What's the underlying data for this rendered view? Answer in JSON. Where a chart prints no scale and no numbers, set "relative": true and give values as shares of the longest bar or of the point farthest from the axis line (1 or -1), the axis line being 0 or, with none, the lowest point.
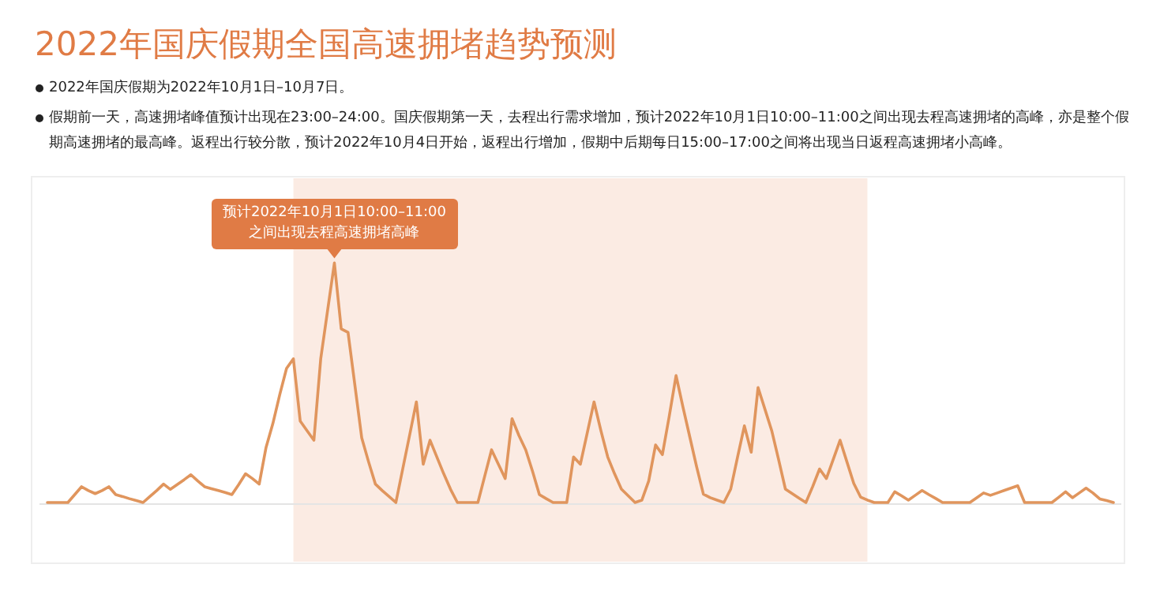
{
  "chart_data": {
    "type": "line",
    "title": "2022年国庆假期全国高速拥堵趋势预测",
    "annotations": [
      "2022年国庆假期为2022年10月1日–10月7日。",
      "假期前一天，高速拥堵峰值预计出现在23:00–24:00。国庆假期第一天，去程出行需求增加，预计2022年10月1日10:00–11:00之间出现去程高速拥堵的高峰，亦是整个假期高速拥堵的最高峰。返程出行较分散，预计2022年10月4日开始，返程出行增加，假期中后期每日15:00–17:00之间将出现当日返程高速拥堵小高峰。",
      {
        "text": "预计2022年10月1日10:00–11:00之间出现去程高速拥堵高峰",
        "y": 1
      }
    ],
    "relative": true,
    "color": "#e0955d",
    "categories": [
      null,
      null,
      null,
      null,
      null,
      null,
      null,
      null,
      null,
      null,
      null,
      null,
      null,
      null,
      null,
      null,
      null,
      null,
      null,
      null,
      null,
      null,
      null,
      null,
      null,
      null,
      null,
      null,
      null,
      null,
      null,
      null,
      null,
      null,
      null,
      null,
      null,
      null,
      null,
      null,
      null,
      null,
      null,
      null,
      null,
      null,
      null,
      null,
      null,
      null,
      null,
      null,
      null,
      null,
      null,
      null,
      null,
      null,
      null,
      null,
      null,
      null,
      null,
      null,
      null,
      null,
      null,
      null,
      null,
      null,
      null,
      null,
      null,
      null,
      null,
      null,
      null,
      null,
      null,
      null,
      null,
      null,
      null,
      null,
      null,
      null,
      null,
      null,
      null,
      null,
      null,
      null,
      null,
      null,
      null,
      null,
      null,
      null,
      null,
      null,
      null,
      null,
      null,
      null,
      null,
      null,
      null,
      null,
      null,
      null,
      null,
      null,
      null,
      null,
      null,
      null,
      null,
      null,
      null,
      null,
      null,
      null,
      null,
      null,
      null,
      null,
      null,
      null,
      null,
      null,
      null,
      null,
      null,
      null,
      null,
      null,
      null,
      null,
      null,
      null,
      null,
      null,
      null,
      null,
      null,
      null,
      null,
      null,
      null,
      null,
      null,
      null,
      null,
      null,
      null,
      null,
      null
    ],
    "values": [
      0,
      0,
      0,
      0,
      0.033,
      0.066,
      0.05,
      0.037,
      0.05,
      0.066,
      0.033,
      0.025,
      0.016,
      0.008,
      0,
      0.025,
      0.05,
      0.077,
      0.055,
      0.075,
      0.095,
      0.116,
      0.09,
      0.066,
      0.058,
      0.05,
      0.042,
      0.033,
      0.075,
      0.12,
      0.1,
      0.077,
      0.23,
      0.33,
      0.45,
      0.56,
      0.6,
      0.34,
      0.3,
      0.26,
      0.6,
      0.8,
      1,
      0.725,
      0.71,
      0.49,
      0.27,
      0.17,
      0.077,
      0.05,
      0.025,
      0,
      0.14,
      0.28,
      0.42,
      0.16,
      0.26,
      0.19,
      0.12,
      0.055,
      0,
      0,
      0,
      0,
      0.11,
      0.22,
      0.16,
      0.1,
      0.35,
      0.28,
      0.22,
      0.13,
      0.033,
      0.016,
      0,
      0,
      0,
      0.19,
      0.16,
      0.29,
      0.42,
      0.3,
      0.19,
      0.12,
      0.056,
      0.028,
      0,
      0.01,
      0.09,
      0.24,
      0.2,
      0.36,
      0.53,
      0.4,
      0.275,
      0.15,
      0.035,
      0.02,
      0.01,
      0,
      0.056,
      0.19,
      0.32,
      0.21,
      0.48,
      0.39,
      0.3,
      0.18,
      0.056,
      0.037,
      0.018,
      0,
      0.067,
      0.14,
      0.1,
      0.18,
      0.26,
      0.17,
      0.08,
      0.023,
      0.01,
      0,
      0,
      0,
      0.045,
      0.028,
      0.01,
      0.03,
      0.05,
      0.033,
      0.017,
      0,
      0,
      0,
      0,
      0,
      0.02,
      0.04,
      0.03,
      0.04,
      0.05,
      0.06,
      0.07,
      0,
      0,
      0,
      0,
      0,
      0.022,
      0.045,
      0.02,
      0.04,
      0.06,
      0.04,
      0.015,
      0.008,
      0
    ]
  }
}
